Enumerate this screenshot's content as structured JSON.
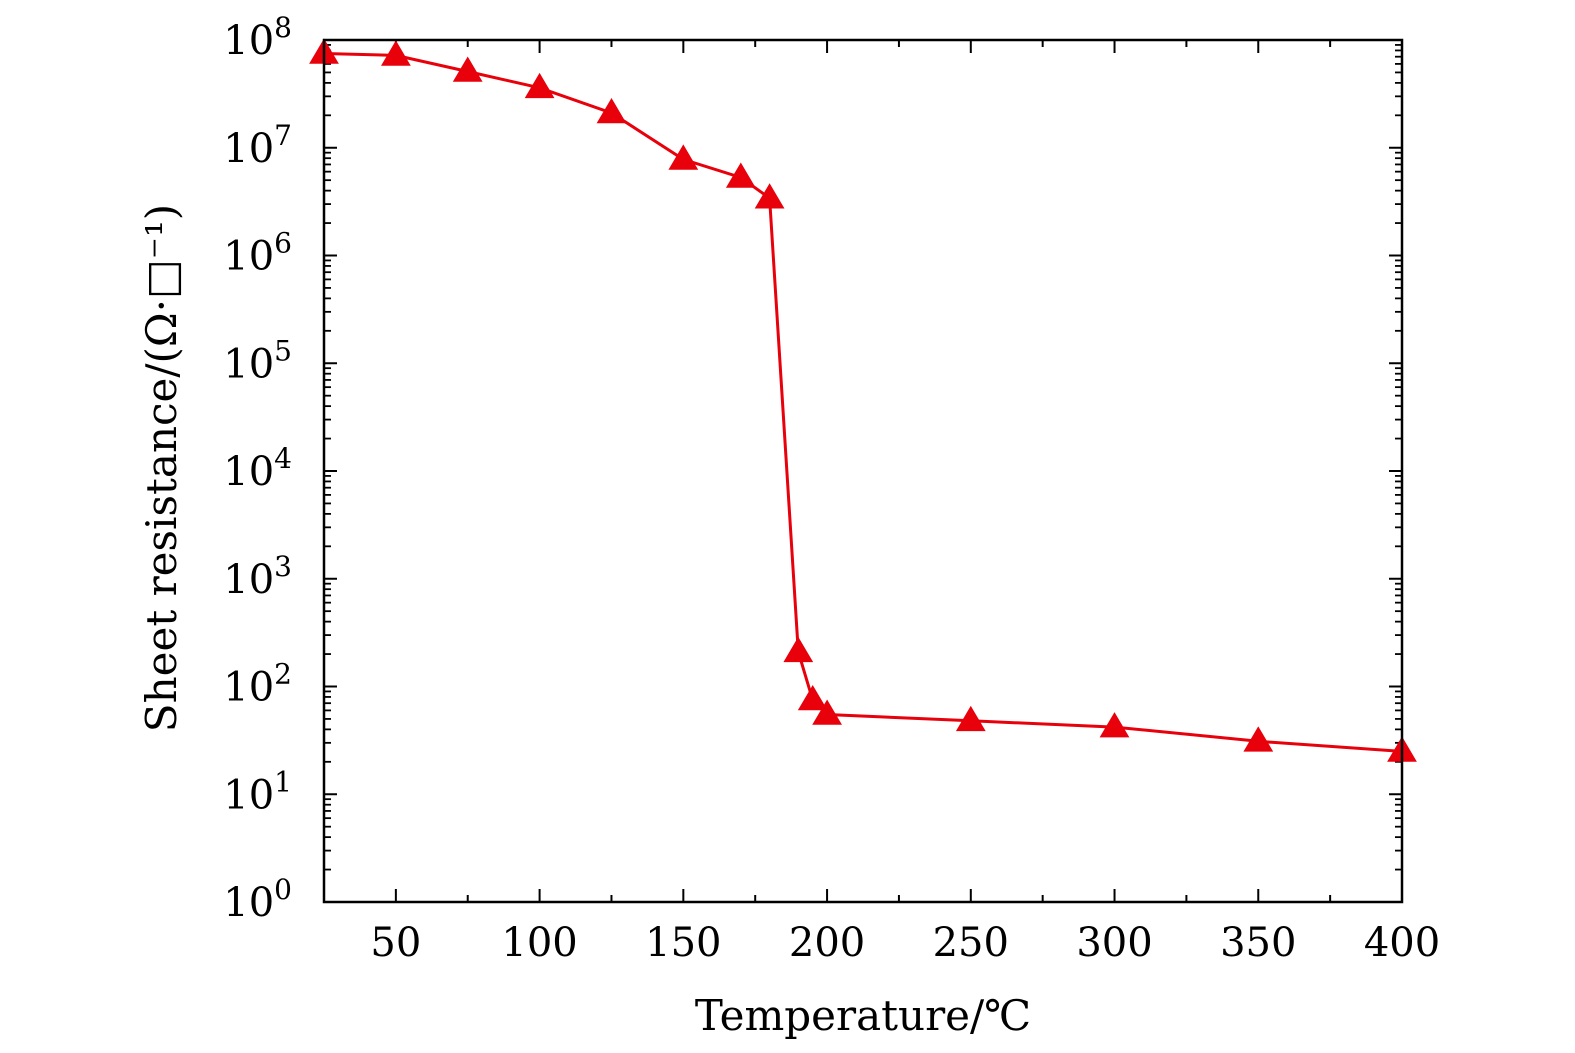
{
  "chart_data": {
    "type": "line",
    "xlabel": "Temperature/℃",
    "ylabel": "Sheet resistance/(Ω·□⁻¹)",
    "xlim": [
      25,
      400
    ],
    "ylim": [
      1,
      100000000
    ],
    "y_scale": "log",
    "x_ticks": [
      50,
      100,
      150,
      200,
      250,
      300,
      350,
      400
    ],
    "y_ticks": [
      {
        "value": 1,
        "base": "10",
        "exp": "0"
      },
      {
        "value": 10,
        "base": "10",
        "exp": "1"
      },
      {
        "value": 100,
        "base": "10",
        "exp": "2"
      },
      {
        "value": 1000,
        "base": "10",
        "exp": "3"
      },
      {
        "value": 10000,
        "base": "10",
        "exp": "4"
      },
      {
        "value": 100000,
        "base": "10",
        "exp": "5"
      },
      {
        "value": 1000000,
        "base": "10",
        "exp": "6"
      },
      {
        "value": 10000000,
        "base": "10",
        "exp": "7"
      },
      {
        "value": 100000000,
        "base": "10",
        "exp": "8"
      }
    ],
    "grid": false,
    "series": [
      {
        "color": "#e8000b",
        "marker": "triangle",
        "x": [
          25,
          50,
          75,
          100,
          125,
          150,
          170,
          180,
          190,
          195,
          200,
          250,
          300,
          350,
          400
        ],
        "y": [
          75000000,
          72000000,
          51000000,
          36000000,
          21000000,
          7800000,
          5300000,
          3400000,
          210,
          75,
          55,
          48,
          42,
          31,
          25
        ]
      }
    ]
  }
}
